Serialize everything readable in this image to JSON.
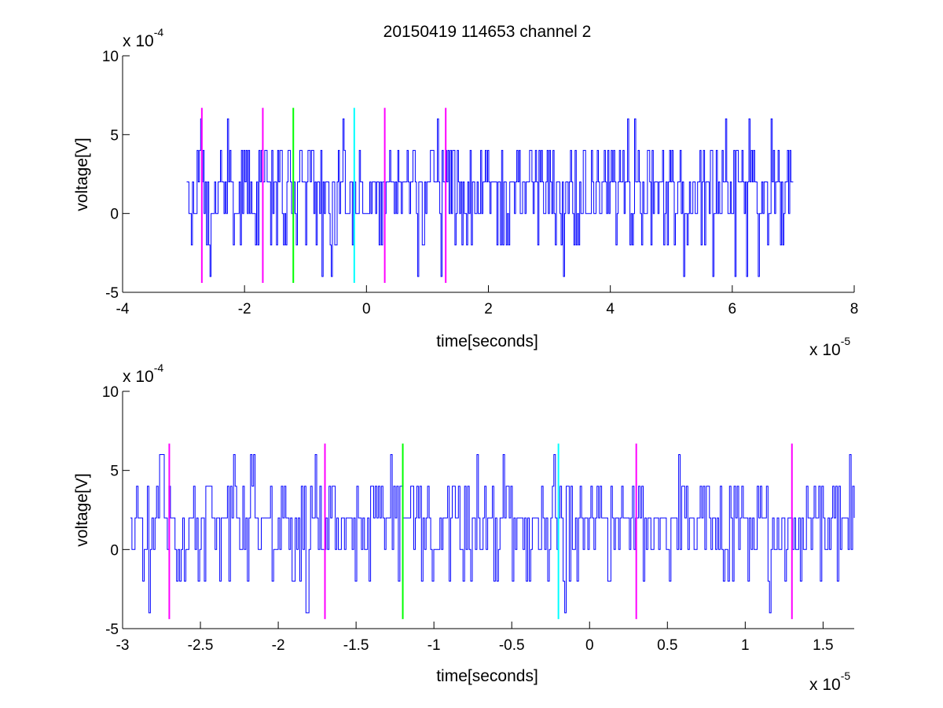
{
  "figure": {
    "title": "20150419 114653 channel 2"
  },
  "colors": {
    "signal": "#0000ff",
    "marker_magenta": "#ff00ff",
    "marker_green": "#00ff00",
    "marker_cyan": "#00ffff",
    "axes": "#000000"
  },
  "chart_data": [
    {
      "type": "line",
      "title": "20150419 114653 channel 2",
      "xlabel": "time[seconds]",
      "ylabel": "voltage[V]",
      "x_exponent_label": "x 10",
      "x_exponent": "-5",
      "y_exponent_label": "x 10",
      "y_exponent": "-4",
      "xlim": [
        -4,
        8
      ],
      "ylim": [
        -5,
        10
      ],
      "x_ticks": [
        "-4",
        "-2",
        "0",
        "2",
        "4",
        "6",
        "8"
      ],
      "y_ticks": [
        "10",
        "5",
        "0",
        "-5"
      ],
      "x_tick_values": [
        -4,
        -2,
        0,
        2,
        4,
        6,
        8
      ],
      "y_tick_values": [
        10,
        5,
        0,
        -5
      ],
      "grid": false,
      "series": [
        {
          "color": "#0000ff",
          "x_start": -2.95,
          "x_end": 7.0,
          "y_min": -4,
          "y_max": 6,
          "y_levels": [
            -4,
            -2,
            0,
            2,
            4,
            6
          ]
        }
      ],
      "markers": [
        {
          "x": -2.7,
          "color": "#ff00ff",
          "y_from": -4.4,
          "y_to": 6.7
        },
        {
          "x": -1.7,
          "color": "#ff00ff",
          "y_from": -4.4,
          "y_to": 6.7
        },
        {
          "x": -1.2,
          "color": "#00ff00",
          "y_from": -4.4,
          "y_to": 6.7
        },
        {
          "x": -0.2,
          "color": "#00ffff",
          "y_from": -4.4,
          "y_to": 6.7
        },
        {
          "x": 0.3,
          "color": "#ff00ff",
          "y_from": -4.4,
          "y_to": 6.7
        },
        {
          "x": 1.3,
          "color": "#ff00ff",
          "y_from": -4.4,
          "y_to": 6.7
        }
      ]
    },
    {
      "type": "line",
      "title": "",
      "xlabel": "time[seconds]",
      "ylabel": "voltage[V]",
      "x_exponent_label": "x 10",
      "x_exponent": "-5",
      "y_exponent_label": "x 10",
      "y_exponent": "-4",
      "xlim": [
        -3.0,
        1.7
      ],
      "ylim": [
        -5,
        10
      ],
      "x_ticks": [
        "-3",
        "-2.5",
        "-2",
        "-1.5",
        "-1",
        "-0.5",
        "0",
        "0.5",
        "1",
        "1.5"
      ],
      "y_ticks": [
        "10",
        "5",
        "0",
        "-5"
      ],
      "x_tick_values": [
        -3,
        -2.5,
        -2,
        -1.5,
        -1,
        -0.5,
        0,
        0.5,
        1,
        1.5
      ],
      "y_tick_values": [
        10,
        5,
        0,
        -5
      ],
      "grid": false,
      "series": [
        {
          "color": "#0000ff",
          "x_start": -2.95,
          "x_end": 1.7,
          "y_min": -4,
          "y_max": 6,
          "y_levels": [
            -4,
            -2,
            0,
            2,
            4,
            6
          ]
        }
      ],
      "markers": [
        {
          "x": -2.7,
          "color": "#ff00ff",
          "y_from": -4.4,
          "y_to": 6.7
        },
        {
          "x": -1.7,
          "color": "#ff00ff",
          "y_from": -4.4,
          "y_to": 6.7
        },
        {
          "x": -1.2,
          "color": "#00ff00",
          "y_from": -4.4,
          "y_to": 6.7
        },
        {
          "x": -0.2,
          "color": "#00ffff",
          "y_from": -4.4,
          "y_to": 6.7
        },
        {
          "x": 0.3,
          "color": "#ff00ff",
          "y_from": -4.4,
          "y_to": 6.7
        },
        {
          "x": 1.3,
          "color": "#ff00ff",
          "y_from": -4.4,
          "y_to": 6.7
        }
      ]
    }
  ]
}
